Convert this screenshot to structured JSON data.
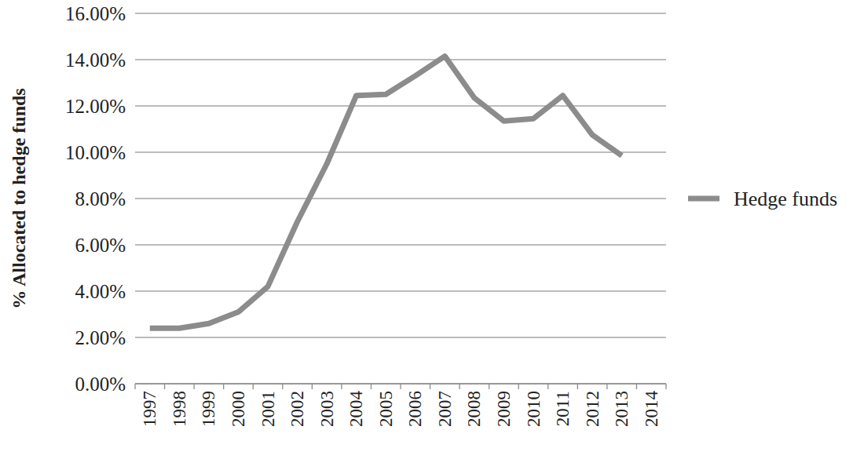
{
  "chart_data": {
    "type": "line",
    "y_label": "% Allocated to hedge funds",
    "categories": [
      "1997",
      "1998",
      "1999",
      "2000",
      "2001",
      "2002",
      "2003",
      "2004",
      "2005",
      "2006",
      "2007",
      "2008",
      "2009",
      "2010",
      "2011",
      "2012",
      "2013",
      "2014"
    ],
    "series": [
      {
        "name": "Hedge funds",
        "color": "#8c8c8c",
        "values": [
          2.4,
          2.4,
          2.6,
          3.1,
          4.2,
          7.0,
          9.5,
          12.45,
          12.5,
          13.3,
          14.15,
          12.35,
          11.35,
          11.45,
          12.45,
          10.75,
          9.85,
          null
        ]
      }
    ],
    "ylim": [
      0,
      16
    ],
    "yticks": [
      {
        "value": 0,
        "label": "0.00%"
      },
      {
        "value": 2,
        "label": "2.00%"
      },
      {
        "value": 4,
        "label": "4.00%"
      },
      {
        "value": 6,
        "label": "6.00%"
      },
      {
        "value": 8,
        "label": "8.00%"
      },
      {
        "value": 10,
        "label": "10.00%"
      },
      {
        "value": 12,
        "label": "12.00%"
      },
      {
        "value": 14,
        "label": "14.00%"
      },
      {
        "value": 16,
        "label": "16.00%"
      }
    ],
    "grid": true,
    "legend": "right"
  }
}
